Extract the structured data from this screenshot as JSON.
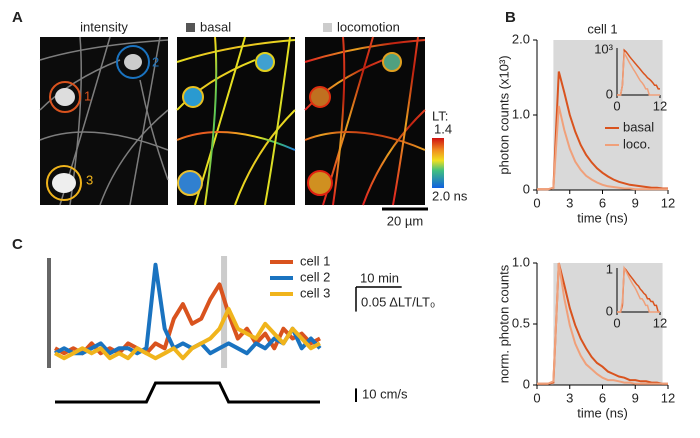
{
  "panel_labels": [
    "A",
    "B",
    "C"
  ],
  "panel_a": {
    "headers": [
      "intensity",
      "basal",
      "locomotion"
    ],
    "cell_labels": [
      "1",
      "2",
      "3"
    ],
    "colorbar_title": "LT:",
    "colorbar_top": "1.4",
    "colorbar_bottom": "2.0 ns",
    "scale_bar": "20 µm"
  },
  "chart_data": [
    {
      "type": "line",
      "title": "cell 1",
      "xlabel": "time (ns)",
      "ylabel": "photon counts (x10³)",
      "x": [
        0,
        0.5,
        1,
        1.5,
        2,
        2.5,
        3,
        3.5,
        4,
        4.5,
        5,
        5.5,
        6,
        6.5,
        7,
        7.5,
        8,
        8.5,
        9,
        9.5,
        10,
        10.5,
        11,
        11.5,
        12
      ],
      "series": [
        {
          "name": "basal",
          "color": "#d9531e",
          "values": [
            0.01,
            0.01,
            0.01,
            0.03,
            1.58,
            1.3,
            1.0,
            0.78,
            0.6,
            0.47,
            0.37,
            0.29,
            0.23,
            0.18,
            0.14,
            0.11,
            0.09,
            0.07,
            0.06,
            0.05,
            0.04,
            0.03,
            0.03,
            0.02,
            0.02
          ]
        },
        {
          "name": "loco.",
          "color": "#f0a07a",
          "values": [
            0.01,
            0.01,
            0.01,
            0.03,
            1.12,
            0.8,
            0.55,
            0.38,
            0.27,
            0.19,
            0.14,
            0.1,
            0.07,
            0.05,
            0.04,
            0.03,
            0.02,
            0.02,
            0.01,
            0.01,
            0.01,
            0.01,
            0.01,
            0.01,
            0.01
          ]
        }
      ],
      "xlim": [
        0,
        12
      ],
      "xticks": [
        0,
        3,
        6,
        9,
        12
      ],
      "ylim": [
        0,
        2
      ],
      "yticks": [
        0,
        {
          "value": 1,
          "label": "1.0"
        },
        {
          "value": 2,
          "label": "2.0"
        }
      ],
      "shaded_x": [
        1.5,
        11.5
      ],
      "shade_color": "#d9d9d9",
      "legend": "right",
      "inset": {
        "log_scale": true,
        "xlim": [
          0,
          12
        ],
        "ylim": [
          0.01,
          2
        ],
        "xticks": [
          0,
          12
        ],
        "ytick_labels": [
          "10³",
          "0"
        ]
      }
    },
    {
      "type": "line",
      "xlabel": "time (ns)",
      "ylabel": "norm. photon counts",
      "x": [
        0,
        0.5,
        1,
        1.5,
        2,
        2.5,
        3,
        3.5,
        4,
        4.5,
        5,
        5.5,
        6,
        6.5,
        7,
        7.5,
        8,
        8.5,
        9,
        9.5,
        10,
        10.5,
        11,
        11.5,
        12
      ],
      "series": [
        {
          "color": "#d9531e",
          "values": [
            0.01,
            0.01,
            0.01,
            0.02,
            1,
            0.82,
            0.63,
            0.49,
            0.38,
            0.3,
            0.23,
            0.18,
            0.15,
            0.11,
            0.09,
            0.07,
            0.06,
            0.04,
            0.04,
            0.03,
            0.03,
            0.02,
            0.02,
            0.01,
            0.01
          ]
        },
        {
          "color": "#f0a07a",
          "values": [
            0.01,
            0.01,
            0.01,
            0.03,
            1,
            0.71,
            0.49,
            0.34,
            0.24,
            0.17,
            0.13,
            0.09,
            0.06,
            0.04,
            0.04,
            0.03,
            0.02,
            0.02,
            0.01,
            0.01,
            0.01,
            0.01,
            0.01,
            0.01,
            0.01
          ]
        }
      ],
      "xlim": [
        0,
        12
      ],
      "xticks": [
        0,
        3,
        6,
        9,
        12
      ],
      "ylim": [
        0,
        1
      ],
      "yticks": [
        0,
        0.5,
        {
          "value": 1,
          "label": "1.0"
        }
      ],
      "shaded_x": [
        1.5,
        11.5
      ],
      "shade_color": "#d9d9d9",
      "inset": {
        "log_scale": true,
        "xlim": [
          0,
          12
        ],
        "ylim": [
          0.01,
          1
        ],
        "xticks": [
          0,
          12
        ],
        "ytick_labels": [
          "1",
          "0"
        ]
      }
    },
    {
      "type": "line",
      "axes": false,
      "x": [
        0,
        2,
        4,
        6,
        8,
        10,
        12,
        14,
        16,
        18,
        20,
        22,
        24,
        26,
        28,
        30,
        32,
        34,
        36,
        38,
        40,
        42,
        44,
        46,
        48,
        50,
        52,
        54,
        56,
        58
      ],
      "series": [
        {
          "name": "cell 1",
          "color": "#d9531e",
          "values": [
            0.02,
            0.01,
            0.02,
            0.01,
            0.03,
            0.01,
            0.02,
            0.01,
            0.03,
            0.02,
            0.01,
            0.03,
            0.02,
            0.08,
            0.11,
            0.07,
            0.08,
            0.12,
            0.15,
            0.09,
            0.04,
            0.06,
            0.03,
            0.05,
            0.02,
            0.06,
            0.04,
            0.05,
            0.03,
            0.04
          ]
        },
        {
          "name": "cell 2",
          "color": "#1a73c0",
          "values": [
            0.01,
            0.02,
            0.01,
            0.01,
            0.02,
            0.03,
            0.01,
            0.02,
            0.02,
            0.01,
            0.02,
            0.19,
            0.06,
            0.02,
            0.03,
            0.02,
            0.03,
            0.01,
            0.02,
            0.03,
            0.02,
            0.01,
            0.03,
            0.02,
            0.04,
            0.03,
            0.06,
            0.02,
            0.04,
            0.02
          ]
        },
        {
          "name": "cell 3",
          "color": "#f0b41c",
          "values": [
            0.01,
            0,
            0.01,
            0.02,
            0.01,
            0.02,
            0,
            0.01,
            0,
            0.02,
            0.01,
            0,
            0.01,
            0.02,
            0,
            0.02,
            0.03,
            0.04,
            0.06,
            0.1,
            0.06,
            0.05,
            0.04,
            0.07,
            0.05,
            0.03,
            0.06,
            0.04,
            0.02,
            0.03
          ]
        }
      ],
      "xlim": [
        0,
        58
      ],
      "ylim": [
        -0.02,
        0.22
      ],
      "highlight_x": 37,
      "legend": "top-right",
      "speed": {
        "color": "#000000",
        "ylim": [
          0,
          14
        ],
        "values": [
          0,
          0,
          0,
          0,
          0,
          0,
          0,
          0,
          0,
          0,
          0,
          14,
          14,
          14,
          14,
          14,
          14,
          14,
          14,
          0,
          0,
          0,
          0,
          0,
          0,
          0,
          0,
          0,
          0,
          0
        ]
      },
      "scalebars": [
        {
          "label": "10 min",
          "value": 10,
          "axis": "x"
        },
        {
          "label": "0.05 ΔLT/LT₀",
          "value": 0.05,
          "axis": "y"
        },
        {
          "label": "10 cm/s",
          "value": 10,
          "axis": "speed"
        }
      ]
    }
  ]
}
